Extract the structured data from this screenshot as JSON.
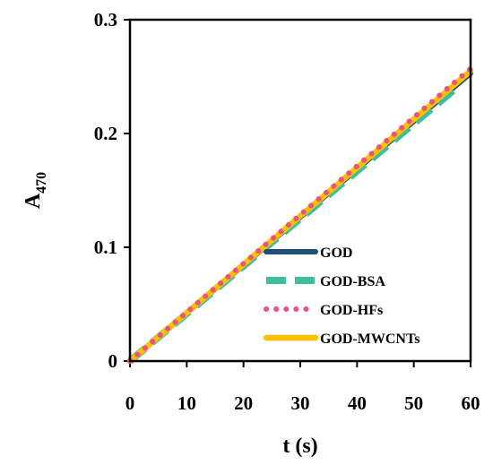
{
  "chart_data": {
    "type": "line",
    "xlabel": "t (s)",
    "ylabel": "A",
    "ylabel_subscript": "470",
    "xlim": [
      0,
      60
    ],
    "ylim": [
      0,
      0.3
    ],
    "x_ticks": [
      "0",
      "10",
      "20",
      "30",
      "40",
      "50",
      "60"
    ],
    "y_ticks": [
      "0",
      "0.1",
      "0.2",
      "0.3"
    ],
    "grid": false,
    "legend_position": "bottom-right",
    "series": [
      {
        "name": "GOD",
        "color": "#1f4e79",
        "style": "solid",
        "x": [
          0,
          60
        ],
        "y": [
          0,
          0.253
        ]
      },
      {
        "name": "GOD-BSA",
        "color": "#3dbf9d",
        "style": "long-dash",
        "x": [
          0,
          57
        ],
        "y": [
          0,
          0.238
        ]
      },
      {
        "name": "GOD-HFs",
        "color": "#e8537f",
        "style": "dotted",
        "x": [
          0,
          60
        ],
        "y": [
          0,
          0.257
        ]
      },
      {
        "name": "GOD-MWCNTs",
        "color": "#ffc000",
        "style": "solid-thick",
        "x": [
          0,
          60
        ],
        "y": [
          0,
          0.255
        ]
      }
    ]
  }
}
